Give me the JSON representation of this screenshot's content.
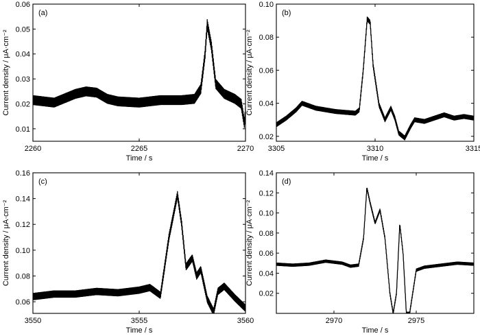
{
  "chart_data": [
    {
      "type": "line",
      "panel_label": "(a)",
      "xlabel": "Time / s",
      "ylabel": "Current density / μA·cm⁻²",
      "xlim": [
        2260,
        2270
      ],
      "ylim": [
        0.005,
        0.06
      ],
      "xticks": [
        2260,
        2265,
        2270
      ],
      "yticks": [
        0.01,
        0.02,
        0.03,
        0.04,
        0.05,
        0.06
      ],
      "xtick_labels": [
        "2260",
        "2265",
        "2270"
      ],
      "ytick_labels": [
        "0.01",
        "0.02",
        "0.03",
        "0.04",
        "0.05",
        "0.06"
      ],
      "noise": 0.0018,
      "x": [
        2260,
        2261,
        2262,
        2262.5,
        2263,
        2263.5,
        2264,
        2265,
        2266,
        2267,
        2267.6,
        2267.9,
        2268.1,
        2268.2,
        2268.4,
        2268.6,
        2269,
        2269.5,
        2269.8,
        2269.95,
        2270
      ],
      "y": [
        0.0215,
        0.0205,
        0.024,
        0.025,
        0.0245,
        0.022,
        0.021,
        0.0205,
        0.0215,
        0.0215,
        0.022,
        0.026,
        0.04,
        0.052,
        0.043,
        0.028,
        0.024,
        0.022,
        0.02,
        0.012,
        0.017
      ]
    },
    {
      "type": "line",
      "panel_label": "(b)",
      "xlabel": "Time / s",
      "ylabel": "Current density / μA·cm⁻²",
      "xlim": [
        3305,
        3315
      ],
      "ylim": [
        0.017,
        0.1
      ],
      "xticks": [
        3305,
        3310,
        3315
      ],
      "yticks": [
        0.02,
        0.04,
        0.06,
        0.08,
        0.1
      ],
      "xtick_labels": [
        "3305",
        "3310",
        "3315"
      ],
      "ytick_labels": [
        "0.02",
        "0.04",
        "0.06",
        "0.08",
        "0.10"
      ],
      "noise": 0.0012,
      "x": [
        3305,
        3305.5,
        3306,
        3306.3,
        3307,
        3308,
        3309,
        3309.2,
        3309.4,
        3309.6,
        3309.75,
        3309.9,
        3310.2,
        3310.5,
        3310.8,
        3311,
        3311.2,
        3311.5,
        3311.8,
        3312,
        3312.5,
        3313,
        3313.5,
        3314,
        3314.5,
        3315
      ],
      "y": [
        0.027,
        0.031,
        0.036,
        0.04,
        0.037,
        0.035,
        0.034,
        0.036,
        0.06,
        0.091,
        0.089,
        0.063,
        0.039,
        0.03,
        0.037,
        0.031,
        0.022,
        0.019,
        0.026,
        0.03,
        0.029,
        0.031,
        0.033,
        0.031,
        0.032,
        0.031
      ]
    },
    {
      "type": "line",
      "panel_label": "(c)",
      "xlabel": "Time / s",
      "ylabel": "Current density / μA·cm⁻²",
      "xlim": [
        3550,
        3560
      ],
      "ylim": [
        0.051,
        0.16
      ],
      "xticks": [
        3550,
        3555,
        3560
      ],
      "yticks": [
        0.06,
        0.08,
        0.1,
        0.12,
        0.14,
        0.16
      ],
      "xtick_labels": [
        "3550",
        "3555",
        "3560"
      ],
      "ytick_labels": [
        "0.06",
        "0.08",
        "0.10",
        "0.12",
        "0.14",
        "0.16"
      ],
      "noise": 0.0025,
      "x": [
        3550,
        3551,
        3552,
        3553,
        3554,
        3555,
        3555.5,
        3556,
        3556.4,
        3556.8,
        3557,
        3557.2,
        3557.5,
        3557.7,
        3557.9,
        3558.2,
        3558.5,
        3558.7,
        3559,
        3559.5,
        3560
      ],
      "y": [
        0.064,
        0.066,
        0.066,
        0.068,
        0.067,
        0.069,
        0.071,
        0.065,
        0.11,
        0.143,
        0.12,
        0.087,
        0.094,
        0.08,
        0.085,
        0.062,
        0.052,
        0.068,
        0.072,
        0.063,
        0.055
      ]
    },
    {
      "type": "line",
      "panel_label": "(d)",
      "xlabel": "Time / s",
      "ylabel": "Current density / μA·cm⁻²",
      "xlim": [
        2966.5,
        2978.5
      ],
      "ylim": [
        0.0,
        0.14
      ],
      "xticks": [
        2970,
        2975
      ],
      "yticks": [
        0.02,
        0.04,
        0.06,
        0.08,
        0.1,
        0.12,
        0.14
      ],
      "xtick_labels": [
        "2970",
        "2975"
      ],
      "ytick_labels": [
        "0.02",
        "0.04",
        "0.06",
        "0.08",
        "0.10",
        "0.12",
        "0.14"
      ],
      "noise": 0.0012,
      "x": [
        2966.5,
        2967.5,
        2968.5,
        2969.5,
        2970.5,
        2971,
        2971.5,
        2971.8,
        2972.0,
        2972.2,
        2972.5,
        2972.8,
        2973.1,
        2973.4,
        2973.6,
        2973.8,
        2974.0,
        2974.2,
        2974.4,
        2974.6,
        2975.0,
        2975.5,
        2976.5,
        2977.5,
        2978.5
      ],
      "y": [
        0.049,
        0.048,
        0.049,
        0.052,
        0.05,
        0.047,
        0.048,
        0.075,
        0.125,
        0.11,
        0.09,
        0.103,
        0.075,
        0.02,
        0.0,
        0.02,
        0.089,
        0.06,
        0.0,
        0.0,
        0.043,
        0.046,
        0.048,
        0.05,
        0.049
      ]
    }
  ]
}
